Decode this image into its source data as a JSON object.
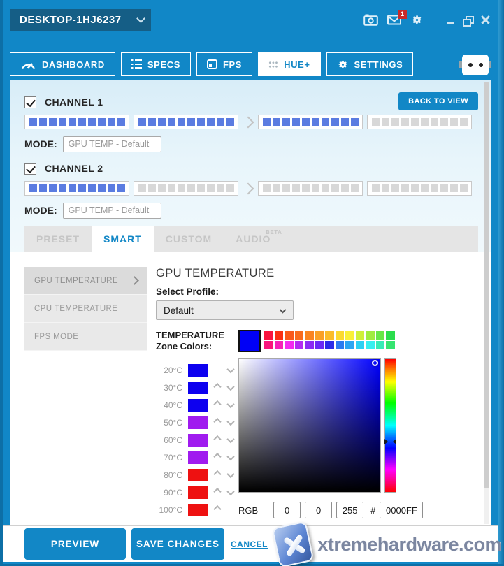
{
  "titlebar": {
    "device_name": "DESKTOP-1HJ6237",
    "notification_count": "1"
  },
  "nav": {
    "items": [
      {
        "id": "dashboard",
        "label": "DASHBOARD",
        "icon": "gauge-icon",
        "active": false
      },
      {
        "id": "specs",
        "label": "SPECS",
        "icon": "list-icon",
        "active": false
      },
      {
        "id": "fps",
        "label": "FPS",
        "icon": "monitor-icon",
        "active": false
      },
      {
        "id": "hue",
        "label": "HUE+",
        "icon": "grid-icon",
        "active": true
      },
      {
        "id": "settings",
        "label": "SETTINGS",
        "icon": "gear-icon",
        "active": false
      }
    ]
  },
  "panel": {
    "back_to_view_label": "BACK TO VIEW",
    "led_colors": {
      "active": "#5b7ce1",
      "inactive": "#d8d8d8"
    },
    "channels": [
      {
        "label": "CHANNEL 1",
        "checked": true,
        "mode_label": "MODE:",
        "mode_value": "GPU TEMP - Default",
        "leds_per_strip": 10,
        "strips": [
          true,
          true,
          true,
          false
        ],
        "show_back_button": true
      },
      {
        "label": "CHANNEL 2",
        "checked": true,
        "mode_label": "MODE:",
        "mode_value": "GPU TEMP - Default",
        "leds_per_strip": 10,
        "strips": [
          true,
          false,
          false,
          false
        ],
        "show_back_button": false
      }
    ],
    "mode_tabs": [
      {
        "label": "PRESET",
        "active": false,
        "badge": ""
      },
      {
        "label": "SMART",
        "active": true,
        "badge": ""
      },
      {
        "label": "CUSTOM",
        "active": false,
        "badge": ""
      },
      {
        "label": "AUDIO",
        "active": false,
        "badge": "BETA"
      }
    ],
    "sidebar": {
      "items": [
        {
          "label": "GPU TEMPERATURE",
          "selected": true
        },
        {
          "label": "CPU TEMPERATURE",
          "selected": false
        },
        {
          "label": "FPS MODE",
          "selected": false
        }
      ]
    },
    "smart": {
      "heading": "GPU TEMPERATURE",
      "select_profile_label": "Select Profile:",
      "profile_value": "Default",
      "temperature_label": "TEMPERATURE",
      "zone_colors_label": "Zone Colors:",
      "zones": [
        {
          "temp": "20°C",
          "color": "#0d00ef",
          "up": false,
          "down": true
        },
        {
          "temp": "30°C",
          "color": "#0d00ef",
          "up": true,
          "down": true
        },
        {
          "temp": "40°C",
          "color": "#0d00ef",
          "up": true,
          "down": true
        },
        {
          "temp": "50°C",
          "color": "#a01bef",
          "up": true,
          "down": true
        },
        {
          "temp": "60°C",
          "color": "#a01bef",
          "up": true,
          "down": true
        },
        {
          "temp": "70°C",
          "color": "#a01bef",
          "up": true,
          "down": true
        },
        {
          "temp": "80°C",
          "color": "#ee1111",
          "up": true,
          "down": true
        },
        {
          "temp": "90°C",
          "color": "#ee1111",
          "up": true,
          "down": true
        },
        {
          "temp": "100°C",
          "color": "#ee1111",
          "up": true,
          "down": false
        }
      ],
      "picker": {
        "current_color": "#0000F6",
        "palette_row1": [
          "#fa1540",
          "#fb3013",
          "#fa591a",
          "#f96b1d",
          "#fa8420",
          "#faa026",
          "#fbbc2a",
          "#fbd930",
          "#f9f038",
          "#cff03a",
          "#9fec40",
          "#66e748",
          "#2bdd4d"
        ],
        "palette_row2": [
          "#f9177e",
          "#f522b9",
          "#f32bf0",
          "#b32bf2",
          "#8c2bf4",
          "#6b2bf5",
          "#2b2be8",
          "#2b7bf0",
          "#2ba5f2",
          "#2bd0f2",
          "#35efef",
          "#35ebb5",
          "#35e470"
        ],
        "hue_selector_percent": 62,
        "rgb_label": "RGB",
        "r": "0",
        "g": "0",
        "b": "255",
        "hex_label": "#",
        "hex": "0000FF"
      }
    }
  },
  "footer": {
    "preview_label": "PREVIEW",
    "save_label": "SAVE CHANGES",
    "cancel_label": "CANCEL"
  },
  "watermark": {
    "text": "xtremehardware.com"
  },
  "colors": {
    "accent": "#1287c6",
    "topbar": "#1187c7",
    "device_box": "#155e86"
  }
}
